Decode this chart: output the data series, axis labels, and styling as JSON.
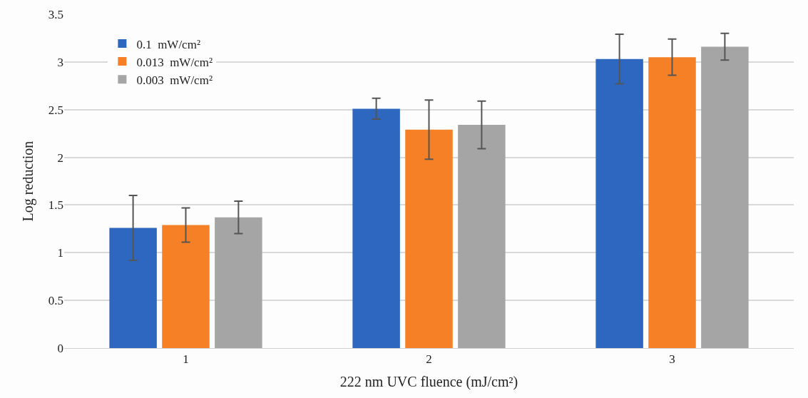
{
  "chart_data": {
    "type": "bar",
    "xlabel": "222 nm UVC fluence (mJ/cm²)",
    "ylabel": "Log reduction",
    "categories": [
      "1",
      "2",
      "3"
    ],
    "series": [
      {
        "name": "0.1  mW/cm²",
        "color": "#2e67bf",
        "values": [
          1.26,
          2.51,
          3.03
        ],
        "errors": [
          0.34,
          0.11,
          0.26
        ]
      },
      {
        "name": "0.013  mW/cm²",
        "color": "#f58025",
        "values": [
          1.29,
          2.29,
          3.05
        ],
        "errors": [
          0.18,
          0.31,
          0.19
        ]
      },
      {
        "name": "0.003  mW/cm²",
        "color": "#a5a5a5",
        "values": [
          1.37,
          2.34,
          3.16
        ],
        "errors": [
          0.17,
          0.25,
          0.14
        ]
      }
    ],
    "ylim": [
      0,
      3.5
    ],
    "yticks": [
      0,
      0.5,
      1,
      1.5,
      2,
      2.5,
      3,
      3.5
    ],
    "grid": "y",
    "legend": "top left"
  }
}
